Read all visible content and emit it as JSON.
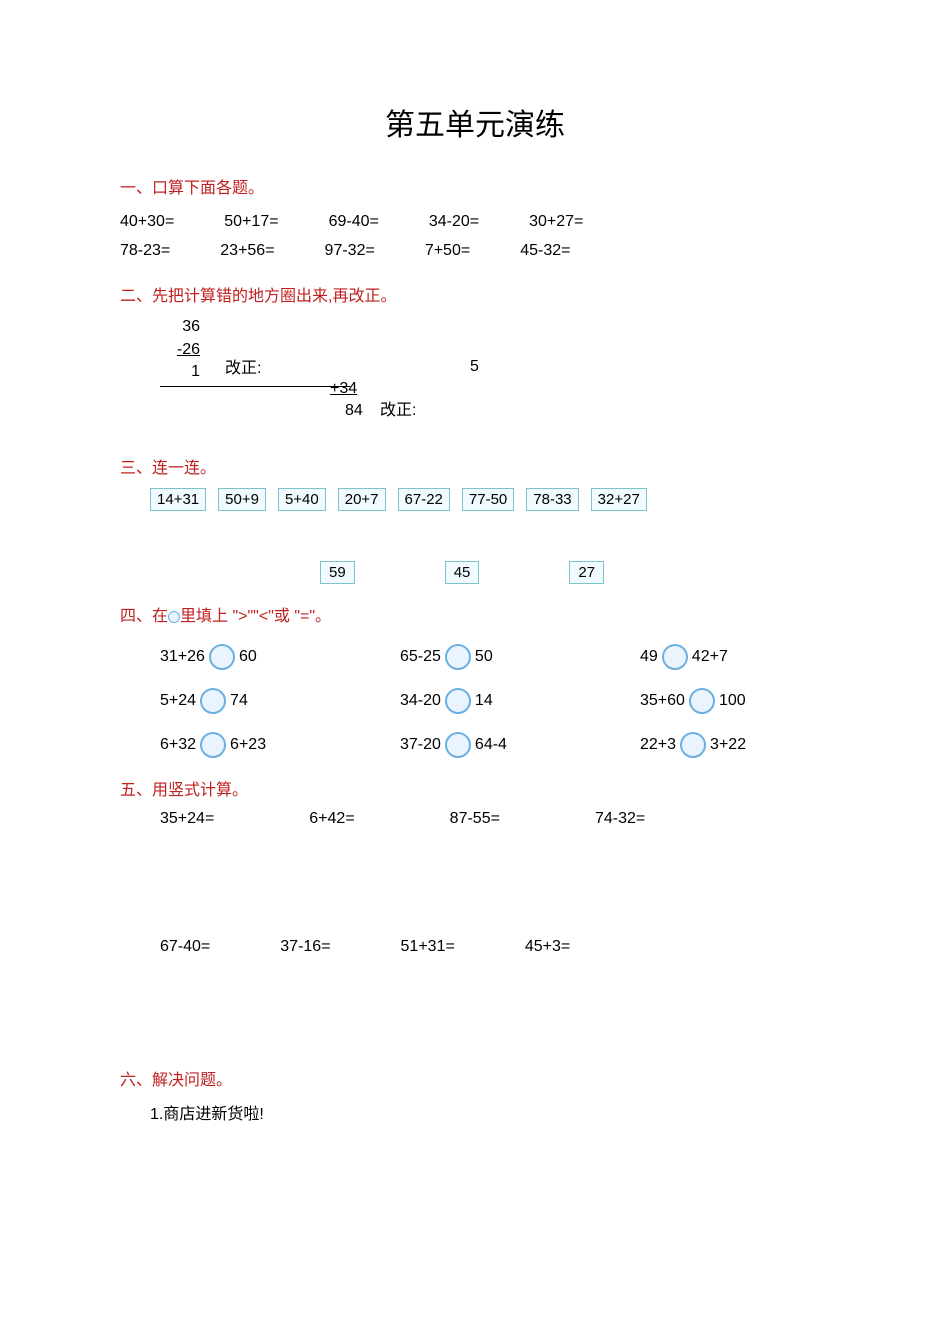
{
  "title": "第五单元演练",
  "section1": {
    "header": "一、口算下面各题。",
    "row1": [
      "40+30=",
      "50+17=",
      "69-40=",
      "34-20=",
      "30+27="
    ],
    "row2": [
      "78-23=",
      "23+56=",
      "97-32=",
      "7+50=",
      "45-32="
    ]
  },
  "section2": {
    "header": "二、先把计算错的地方圈出来,再改正。",
    "col_a": "36",
    "col_b": "-26",
    "col_c": "1",
    "label": "改正:",
    "five": "5",
    "plus34": "+34",
    "r84": "84",
    "label2": "改正:"
  },
  "section3": {
    "header": "三、连一连。",
    "tops": [
      "14+31",
      "50+9",
      "5+40",
      "20+7",
      "67-22",
      "77-50",
      "78-33",
      "32+27"
    ],
    "answers": [
      "59",
      "45",
      "27"
    ]
  },
  "section4": {
    "header_pre": "四、在",
    "header_post": "里填上 \">\"\"<\"或 \"=\"。",
    "rows": [
      [
        {
          "l": "31+26",
          "r": "60"
        },
        {
          "l": "65-25",
          "r": "50"
        },
        {
          "l": "49",
          "r": "42+7"
        }
      ],
      [
        {
          "l": "5+24",
          "r": "74"
        },
        {
          "l": "34-20",
          "r": "14"
        },
        {
          "l": "35+60",
          "r": "100"
        }
      ],
      [
        {
          "l": "6+32",
          "r": "6+23"
        },
        {
          "l": "37-20",
          "r": "64-4"
        },
        {
          "l": "22+3",
          "r": "3+22"
        }
      ]
    ]
  },
  "section5": {
    "header": "五、用竖式计算。",
    "row1": [
      "35+24=",
      "6+42=",
      "87-55=",
      "74-32="
    ],
    "row2": [
      "67-40=",
      "37-16=",
      "51+31=",
      "45+3="
    ]
  },
  "section6": {
    "header": "六、解决问题。",
    "q1": "1.商店进新货啦!"
  },
  "colors": {
    "header_color": "#c02020",
    "box_border": "#7cc4cc",
    "box_bg": "#f0faff",
    "circle_border": "#6bb0e0",
    "circle_bg": "#eaf4ff",
    "text": "#000000",
    "page_bg": "#ffffff"
  },
  "fonts": {
    "title_size_pt": 22,
    "body_size_pt": 12,
    "family": "Microsoft YaHei / SimSun"
  }
}
